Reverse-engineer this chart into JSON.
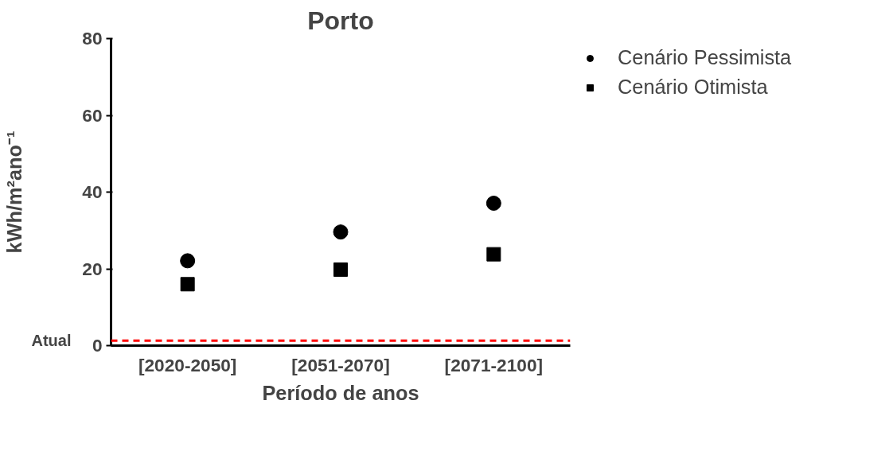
{
  "chart_data": {
    "type": "scatter",
    "title": "Porto",
    "xlabel": "Período de anos",
    "ylabel": "kWh/m²ano⁻¹",
    "categories": [
      "[2020-2050]",
      "[2051-2070]",
      "[2071-2100]"
    ],
    "series": [
      {
        "name": "Cenário Pessimista",
        "color": "#000000",
        "marker": "circle",
        "values": [
          22.1,
          29.6,
          37.1
        ]
      },
      {
        "name": "Cenário Otimista",
        "color": "#000000",
        "marker": "square",
        "values": [
          16.0,
          19.8,
          23.8
        ]
      }
    ],
    "ylim": [
      0,
      80
    ],
    "yticks": [
      0,
      20,
      40,
      60,
      80
    ],
    "grid": false,
    "legend": "top right",
    "ref_lines": [
      {
        "axis": "y",
        "value": 1.3,
        "label": "Atual",
        "color": "#ff0000",
        "line_style": "dashed"
      }
    ]
  }
}
